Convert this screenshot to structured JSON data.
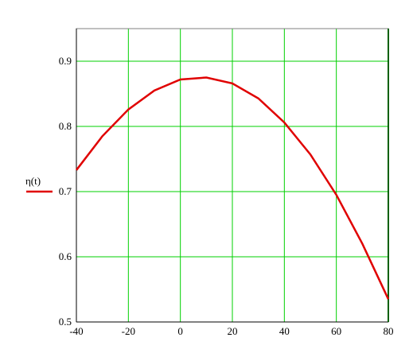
{
  "chart_data": {
    "type": "line",
    "x": [
      -40,
      -30,
      -20,
      -10,
      0,
      10,
      20,
      30,
      40,
      50,
      60,
      70,
      80
    ],
    "series": [
      {
        "name": "η(t)",
        "color": "#e00000",
        "values": [
          0.733,
          0.785,
          0.826,
          0.855,
          0.872,
          0.875,
          0.866,
          0.843,
          0.806,
          0.757,
          0.695,
          0.62,
          0.535
        ]
      }
    ],
    "xlim": [
      -40,
      80
    ],
    "xticks": [
      -40,
      -20,
      0,
      20,
      40,
      60,
      80
    ],
    "ylim": [
      0.5,
      0.95
    ],
    "yticks": [
      0.5,
      0.6,
      0.7,
      0.8,
      0.9
    ],
    "grid": true,
    "grid_color": "#00d000",
    "legend": "left"
  }
}
